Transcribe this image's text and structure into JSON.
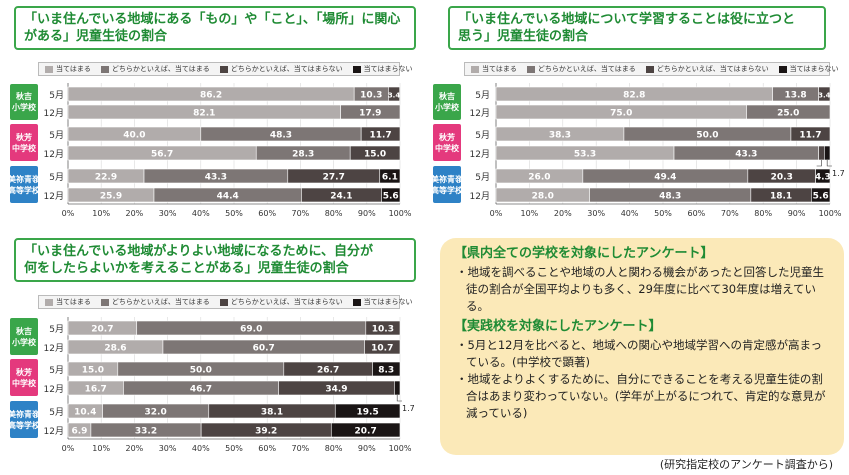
{
  "legend_labels": [
    "当てはまる",
    "どちらかといえば、当てはまる",
    "どちらかといえば、当てはまらない",
    "当てはまらない"
  ],
  "colors": {
    "cat1": "#b1acab",
    "cat2": "#7d7675",
    "cat3": "#4d4443",
    "cat4": "#1a1515",
    "akiyoshi": "#3aa64a",
    "akiyoshi_jh": "#e4397d",
    "mine_hs": "#2e82c6",
    "title_green": "#1f8b34",
    "summary_bg": "#fbe9b8"
  },
  "schools": [
    {
      "lines": [
        "秋吉",
        "小学校"
      ]
    },
    {
      "lines": [
        "秋芳",
        "中学校"
      ]
    },
    {
      "lines": [
        "美祢青嶺",
        "高等学校"
      ]
    }
  ],
  "months": [
    "5月",
    "12月"
  ],
  "chart_data": [
    {
      "type": "bar",
      "title_lines": [
        "「いま住んでいる地域にある「もの」や「こと」、「場所」に関心",
        "がある」児童生徒の割合"
      ],
      "categories": [
        "秋吉小学校 5月",
        "秋吉小学校 12月",
        "秋芳中学校 5月",
        "秋芳中学校 12月",
        "美祢青嶺高等学校 5月",
        "美祢青嶺高等学校 12月"
      ],
      "series": [
        {
          "name": "当てはまる",
          "values": [
            86.2,
            82.1,
            40.0,
            56.7,
            22.9,
            25.9
          ]
        },
        {
          "name": "どちらかといえば、当てはまる",
          "values": [
            10.3,
            17.9,
            48.3,
            28.3,
            43.3,
            44.4
          ]
        },
        {
          "name": "どちらかといえば、当てはまらない",
          "values": [
            3.4,
            0,
            11.7,
            15.0,
            27.7,
            24.1
          ]
        },
        {
          "name": "当てはまらない",
          "values": [
            0,
            0,
            0,
            0,
            6.1,
            5.6
          ]
        }
      ],
      "xticks": [
        "0%",
        "10%",
        "20%",
        "30%",
        "40%",
        "50%",
        "60%",
        "70%",
        "80%",
        "90%",
        "100%"
      ],
      "xlim": [
        0,
        100
      ],
      "outside_labels": []
    },
    {
      "type": "bar",
      "title_lines": [
        "「いま住んでいる地域について学習することは役に立つと",
        "思う」児童生徒の割合"
      ],
      "categories": [
        "秋吉小学校 5月",
        "秋吉小学校 12月",
        "秋芳中学校 5月",
        "秋芳中学校 12月",
        "美祢青嶺高等学校 5月",
        "美祢青嶺高等学校 12月"
      ],
      "series": [
        {
          "name": "当てはまる",
          "values": [
            82.8,
            75.0,
            38.3,
            53.3,
            26.0,
            28.0
          ]
        },
        {
          "name": "どちらかといえば、当てはまる",
          "values": [
            13.8,
            25.0,
            50.0,
            43.3,
            49.4,
            48.3
          ]
        },
        {
          "name": "どちらかといえば、当てはまらない",
          "values": [
            3.4,
            0,
            11.7,
            1.7,
            20.3,
            18.1
          ]
        },
        {
          "name": "当てはまらない",
          "values": [
            0,
            0,
            0,
            1.7,
            4.3,
            5.6
          ]
        }
      ],
      "xticks": [
        "0%",
        "10%",
        "20%",
        "30%",
        "40%",
        "50%",
        "60%",
        "70%",
        "80%",
        "90%",
        "100%"
      ],
      "xlim": [
        0,
        100
      ],
      "outside_labels": [
        {
          "row": 3,
          "series": 2,
          "text": "1.7"
        },
        {
          "row": 3,
          "series": 3,
          "text": "1.7"
        }
      ]
    },
    {
      "type": "bar",
      "title_lines": [
        "「いま住んでいる地域がよりよい地域になるために、自分が",
        "何をしたらよいかを考えることがある」児童生徒の割合"
      ],
      "categories": [
        "秋吉小学校 5月",
        "秋吉小学校 12月",
        "秋芳中学校 5月",
        "秋芳中学校 12月",
        "美祢青嶺高等学校 5月",
        "美祢青嶺高等学校 12月"
      ],
      "series": [
        {
          "name": "当てはまる",
          "values": [
            20.7,
            28.6,
            15.0,
            16.7,
            10.4,
            6.9
          ]
        },
        {
          "name": "どちらかといえば、当てはまる",
          "values": [
            69.0,
            60.7,
            50.0,
            46.7,
            32.0,
            33.2
          ]
        },
        {
          "name": "どちらかといえば、当てはまらない",
          "values": [
            10.3,
            10.7,
            26.7,
            34.9,
            38.1,
            39.2
          ]
        },
        {
          "name": "当てはまらない",
          "values": [
            0,
            0,
            8.3,
            1.7,
            19.5,
            20.7
          ]
        }
      ],
      "xticks": [
        "0%",
        "10%",
        "20%",
        "30%",
        "40%",
        "50%",
        "60%",
        "70%",
        "80%",
        "90%",
        "100%"
      ],
      "xlim": [
        0,
        100
      ],
      "outside_labels": [
        {
          "row": 3,
          "series": 3,
          "text": "1.7"
        }
      ]
    }
  ],
  "summary": {
    "heading1": "【県内全ての学校を対象にしたアンケート】",
    "bullet1": "・地域を調べることや地域の人と関わる機会があったと回答した児童生徒の割合が全国平均よりも多く、29年度に比べて30年度は増えている。",
    "heading2": "【実践校を対象にしたアンケート】",
    "bullet2": "・5月と12月を比べると、地域への関心や地域学習への肯定感が高まっている。(中学校で顕著)",
    "bullet3": "・地域をよりよくするために、自分にできることを考える児童生徒の割合はあまり変わっていない。(学年が上がるにつれて、肯定的な意見が減っている)"
  },
  "source_note": "(研究指定校のアンケート調査から)"
}
